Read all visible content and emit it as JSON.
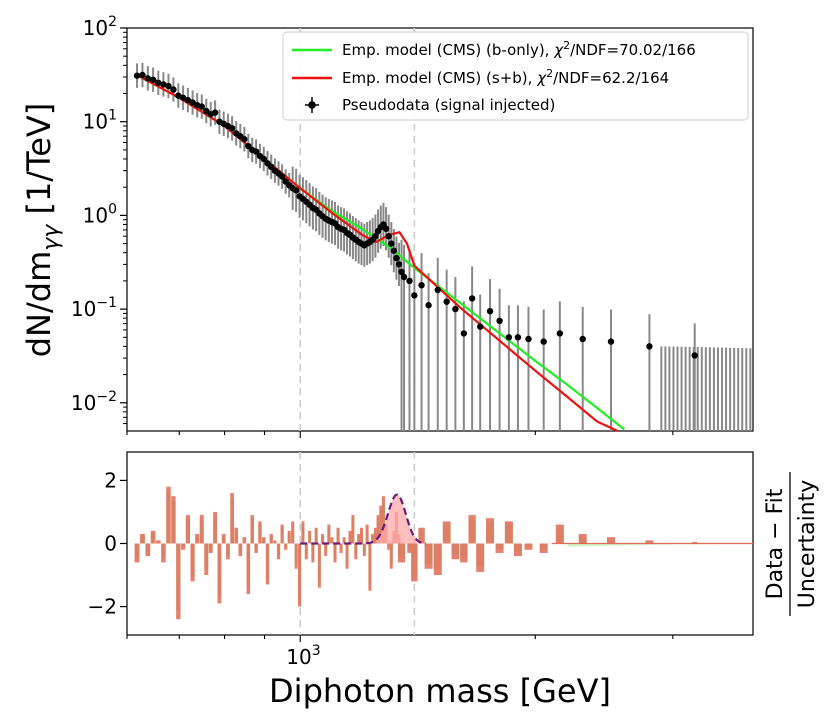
{
  "chart_data": [
    {
      "type": "scatter",
      "panel": "main",
      "ylabel": "dN/dm_γγ [1/TeV]",
      "yscale": "log",
      "xscale": "log",
      "xlim": [
        600,
        3800
      ],
      "ylim": [
        0.005,
        100
      ],
      "yticks": [
        {
          "value": 100,
          "base": "10",
          "exp": "2"
        },
        {
          "value": 10,
          "base": "10",
          "exp": "1"
        },
        {
          "value": 1,
          "base": "10",
          "exp": "0"
        },
        {
          "value": 0.1,
          "base": "10",
          "exp": "−1"
        },
        {
          "value": 0.01,
          "base": "10",
          "exp": "−2"
        }
      ],
      "vlines": [
        1000,
        1400
      ],
      "legend": {
        "location": "upper right",
        "entries": [
          {
            "pre": "Emp. model (CMS) (b-only), ",
            "post": "/NDF=70.02/166",
            "color": "#22ee22"
          },
          {
            "pre": "Emp. model (CMS) (s+b), ",
            "post": "/NDF=62.2/164",
            "color": "#ee1111"
          },
          {
            "pre": "Pseudodata (signal injected)",
            "post": "",
            "color": "#000000"
          }
        ],
        "chi_symbol": "χ",
        "chi_exp": "2"
      },
      "bkg_model": {
        "name": "Emp. model (CMS) (b-only)",
        "color": "#22ee22",
        "points": [
          [
            620,
            31.0
          ],
          [
            700,
            18.0
          ],
          [
            800,
            9.0
          ],
          [
            900,
            4.0
          ],
          [
            1000,
            1.95
          ],
          [
            1100,
            1.1
          ],
          [
            1200,
            0.72
          ],
          [
            1300,
            0.46
          ],
          [
            1400,
            0.275
          ],
          [
            1600,
            0.118
          ],
          [
            1800,
            0.055
          ],
          [
            2000,
            0.028
          ],
          [
            2200,
            0.0155
          ],
          [
            2400,
            0.0088
          ],
          [
            2600,
            0.0052
          ]
        ]
      },
      "sb_model": {
        "name": "Emp. model (CMS) (s+b)",
        "color": "#ee1111",
        "points": [
          [
            620,
            31.0
          ],
          [
            700,
            18.0
          ],
          [
            800,
            9.0
          ],
          [
            900,
            4.0
          ],
          [
            1000,
            1.95
          ],
          [
            1100,
            1.05
          ],
          [
            1200,
            0.62
          ],
          [
            1250,
            0.52
          ],
          [
            1300,
            0.62
          ],
          [
            1340,
            0.66
          ],
          [
            1370,
            0.5
          ],
          [
            1400,
            0.29
          ],
          [
            1600,
            0.105
          ],
          [
            1800,
            0.046
          ],
          [
            2000,
            0.022
          ],
          [
            2200,
            0.0115
          ],
          [
            2400,
            0.0063
          ],
          [
            2550,
            0.0042
          ]
        ]
      },
      "pseudodata": {
        "name": "Pseudodata (signal injected)",
        "points": [
          [
            618,
            31
          ],
          [
            628,
            31.5
          ],
          [
            638,
            29
          ],
          [
            648,
            28
          ],
          [
            658,
            26
          ],
          [
            668,
            25
          ],
          [
            678,
            24
          ],
          [
            688,
            22
          ],
          [
            698,
            19
          ],
          [
            708,
            18
          ],
          [
            718,
            17
          ],
          [
            728,
            16
          ],
          [
            738,
            15
          ],
          [
            748,
            14.5
          ],
          [
            758,
            13
          ],
          [
            768,
            12
          ],
          [
            778,
            12.5
          ],
          [
            788,
            10
          ],
          [
            798,
            9.5
          ],
          [
            808,
            9
          ],
          [
            818,
            8.5
          ],
          [
            828,
            7.5
          ],
          [
            838,
            7
          ],
          [
            848,
            6.5
          ],
          [
            858,
            5.5
          ],
          [
            868,
            5
          ],
          [
            878,
            4.8
          ],
          [
            888,
            4.3
          ],
          [
            898,
            4
          ],
          [
            908,
            3.6
          ],
          [
            918,
            3.3
          ],
          [
            928,
            3
          ],
          [
            938,
            2.8
          ],
          [
            948,
            2.6
          ],
          [
            958,
            2.3
          ],
          [
            968,
            2.1
          ],
          [
            978,
            1.95
          ],
          [
            988,
            1.85
          ],
          [
            998,
            1.6
          ],
          [
            1008,
            1.5
          ],
          [
            1018,
            1.4
          ],
          [
            1028,
            1.3
          ],
          [
            1038,
            1.2
          ],
          [
            1048,
            1.15
          ],
          [
            1058,
            1.05
          ],
          [
            1068,
            0.98
          ],
          [
            1078,
            0.92
          ],
          [
            1088,
            0.88
          ],
          [
            1098,
            0.85
          ],
          [
            1108,
            0.82
          ],
          [
            1118,
            0.75
          ],
          [
            1128,
            0.72
          ],
          [
            1138,
            0.7
          ],
          [
            1148,
            0.65
          ],
          [
            1158,
            0.62
          ],
          [
            1168,
            0.58
          ],
          [
            1178,
            0.55
          ],
          [
            1188,
            0.52
          ],
          [
            1198,
            0.5
          ],
          [
            1208,
            0.48
          ],
          [
            1218,
            0.5
          ],
          [
            1228,
            0.52
          ],
          [
            1238,
            0.55
          ],
          [
            1248,
            0.6
          ],
          [
            1258,
            0.68
          ],
          [
            1268,
            0.75
          ],
          [
            1278,
            0.8
          ],
          [
            1288,
            0.72
          ],
          [
            1298,
            0.6
          ],
          [
            1308,
            0.5
          ],
          [
            1318,
            0.42
          ],
          [
            1328,
            0.35
          ],
          [
            1338,
            0.3
          ],
          [
            1348,
            0.25
          ],
          [
            1358,
            0.22
          ],
          [
            1380,
            0.2
          ],
          [
            1400,
            0.14
          ],
          [
            1430,
            0.18
          ],
          [
            1460,
            0.11
          ],
          [
            1500,
            0.16
          ],
          [
            1540,
            0.12
          ],
          [
            1580,
            0.1
          ],
          [
            1620,
            0.055
          ],
          [
            1660,
            0.13
          ],
          [
            1700,
            0.065
          ],
          [
            1750,
            0.095
          ],
          [
            1800,
            0.075
          ],
          [
            1850,
            0.05
          ],
          [
            1900,
            0.05
          ],
          [
            1960,
            0.048
          ],
          [
            2050,
            0.045
          ],
          [
            2150,
            0.055
          ],
          [
            2300,
            0.048
          ],
          [
            2500,
            0.045
          ],
          [
            2800,
            0.04
          ],
          [
            3200,
            0.032
          ]
        ]
      },
      "error_bar_color": "#888888"
    },
    {
      "type": "bar",
      "panel": "ratio",
      "ylabel": "Data − Fit / Uncertainty",
      "ylabel_top": "Data − Fit",
      "ylabel_bottom": "Uncertainty",
      "xlabel": "Diphoton mass [GeV]",
      "xtick": {
        "value": 1000,
        "base": "10",
        "exp": "3"
      },
      "ylim": [
        -2.9,
        2.9
      ],
      "yticks": [
        {
          "value": 2,
          "label": "2"
        },
        {
          "value": 0,
          "label": "0"
        },
        {
          "value": -2,
          "label": "−2"
        }
      ],
      "vlines": [
        1000,
        1400
      ],
      "bar_color": "#e06a55",
      "bkg_bar_color": "#b8f2b0",
      "signal_fill_color": "#ffaaaa",
      "signal_curve_color": "#6a1a7a",
      "signal_peak": {
        "center": 1330,
        "sigma": 35,
        "height": 1.55
      },
      "residuals": [
        [
          618,
          -0.6
        ],
        [
          628,
          0.3
        ],
        [
          638,
          -0.4
        ],
        [
          648,
          0.4
        ],
        [
          658,
          0.1
        ],
        [
          668,
          -0.6
        ],
        [
          678,
          1.8
        ],
        [
          688,
          1.5
        ],
        [
          698,
          -2.4
        ],
        [
          708,
          -0.2
        ],
        [
          718,
          0.9
        ],
        [
          728,
          -1.2
        ],
        [
          738,
          0.3
        ],
        [
          748,
          0.9
        ],
        [
          758,
          -1.0
        ],
        [
          768,
          -0.3
        ],
        [
          778,
          1.0
        ],
        [
          788,
          -1.9
        ],
        [
          798,
          0.3
        ],
        [
          808,
          -0.5
        ],
        [
          818,
          1.6
        ],
        [
          828,
          0.5
        ],
        [
          838,
          -0.4
        ],
        [
          848,
          0.2
        ],
        [
          858,
          -1.6
        ],
        [
          868,
          0.9
        ],
        [
          878,
          -0.3
        ],
        [
          888,
          0.7
        ],
        [
          898,
          0.2
        ],
        [
          908,
          -1.3
        ],
        [
          918,
          0.3
        ],
        [
          928,
          0.1
        ],
        [
          938,
          -0.5
        ],
        [
          948,
          0.6
        ],
        [
          958,
          -0.2
        ],
        [
          968,
          0.4
        ],
        [
          978,
          0.7
        ],
        [
          988,
          -0.8
        ],
        [
          998,
          -2.0
        ],
        [
          1008,
          0.7
        ],
        [
          1018,
          -0.5
        ],
        [
          1028,
          0.4
        ],
        [
          1038,
          -0.6
        ],
        [
          1048,
          0.5
        ],
        [
          1058,
          -1.4
        ],
        [
          1068,
          0.3
        ],
        [
          1078,
          -0.4
        ],
        [
          1088,
          0.6
        ],
        [
          1098,
          0.2
        ],
        [
          1108,
          -0.6
        ],
        [
          1118,
          0.5
        ],
        [
          1128,
          -0.3
        ],
        [
          1138,
          0.2
        ],
        [
          1148,
          -0.8
        ],
        [
          1158,
          0.4
        ],
        [
          1168,
          0.9
        ],
        [
          1178,
          -0.5
        ],
        [
          1188,
          0.3
        ],
        [
          1198,
          0.5
        ],
        [
          1208,
          -0.4
        ],
        [
          1218,
          0.6
        ],
        [
          1228,
          -1.5
        ],
        [
          1238,
          0.3
        ],
        [
          1248,
          0.5
        ],
        [
          1258,
          0.9
        ],
        [
          1268,
          1.2
        ],
        [
          1278,
          1.5
        ],
        [
          1288,
          0.6
        ],
        [
          1298,
          -0.2
        ],
        [
          1308,
          -0.8
        ],
        [
          1318,
          0.4
        ],
        [
          1328,
          1.0
        ],
        [
          1338,
          0.3
        ],
        [
          1348,
          -0.6
        ],
        [
          1380,
          -0.3
        ],
        [
          1400,
          -1.2
        ],
        [
          1430,
          0.5
        ],
        [
          1460,
          -0.8
        ],
        [
          1500,
          -1.0
        ],
        [
          1540,
          0.7
        ],
        [
          1580,
          -0.5
        ],
        [
          1620,
          -0.6
        ],
        [
          1660,
          0.9
        ],
        [
          1700,
          -0.9
        ],
        [
          1750,
          0.8
        ],
        [
          1800,
          -0.3
        ],
        [
          1850,
          0.7
        ],
        [
          1900,
          -0.4
        ],
        [
          1960,
          -0.2
        ],
        [
          2050,
          -0.3
        ],
        [
          2150,
          0.6
        ],
        [
          2300,
          0.3
        ],
        [
          2500,
          0.2
        ],
        [
          2800,
          0.1
        ],
        [
          3200,
          0.05
        ]
      ],
      "band_tail": [
        [
          2200,
          0.1
        ],
        [
          2600,
          0.06
        ],
        [
          3000,
          0.03
        ],
        [
          3500,
          0.015
        ],
        [
          3800,
          0.0
        ]
      ]
    }
  ]
}
